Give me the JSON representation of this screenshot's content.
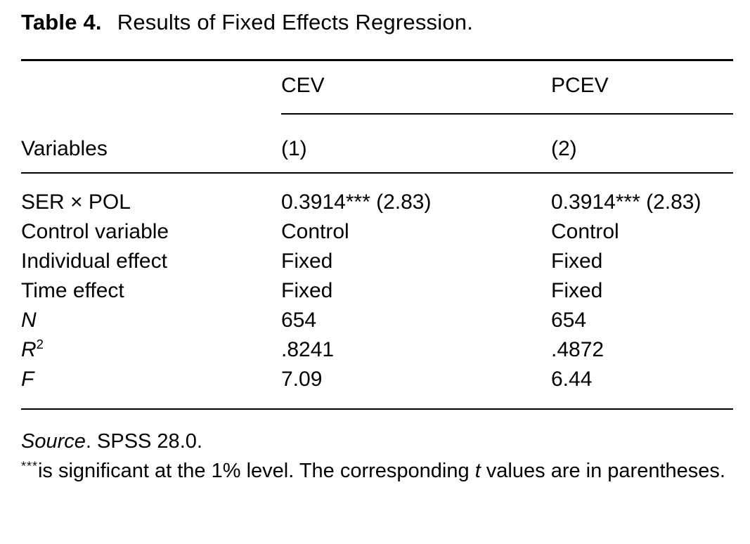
{
  "title": {
    "label": "Table 4.",
    "text": "Results of Fixed Effects Regression."
  },
  "table": {
    "col_groups": {
      "cev": "CEV",
      "pcev": "PCEV"
    },
    "header": {
      "variables": "Variables",
      "model1": "(1)",
      "model2": "(2)"
    },
    "rows": [
      {
        "label": "SER × POL",
        "cev": "0.3914*** (2.83)",
        "pcev": "0.3914*** (2.83)"
      },
      {
        "label": "Control variable",
        "cev": "Control",
        "pcev": "Control"
      },
      {
        "label": "Individual effect",
        "cev": "Fixed",
        "pcev": "Fixed"
      },
      {
        "label": "Time effect",
        "cev": "Fixed",
        "pcev": "Fixed"
      },
      {
        "label": "N",
        "cev": "654",
        "pcev": "654"
      },
      {
        "label": "R",
        "label_sup": "2",
        "cev": ".8241",
        "pcev": ".4872"
      },
      {
        "label": "F",
        "cev": "7.09",
        "pcev": "6.44"
      }
    ]
  },
  "notes": {
    "source_label": "Source",
    "source_text": ". SPSS 28.0.",
    "sig_marker": "***",
    "sig_text_1": "is significant at the 1% level. The corresponding ",
    "sig_italic_t": "t",
    "sig_text_2": " values are in parentheses."
  },
  "colors": {
    "text": "#000000",
    "background": "#ffffff",
    "rule": "#000000"
  }
}
